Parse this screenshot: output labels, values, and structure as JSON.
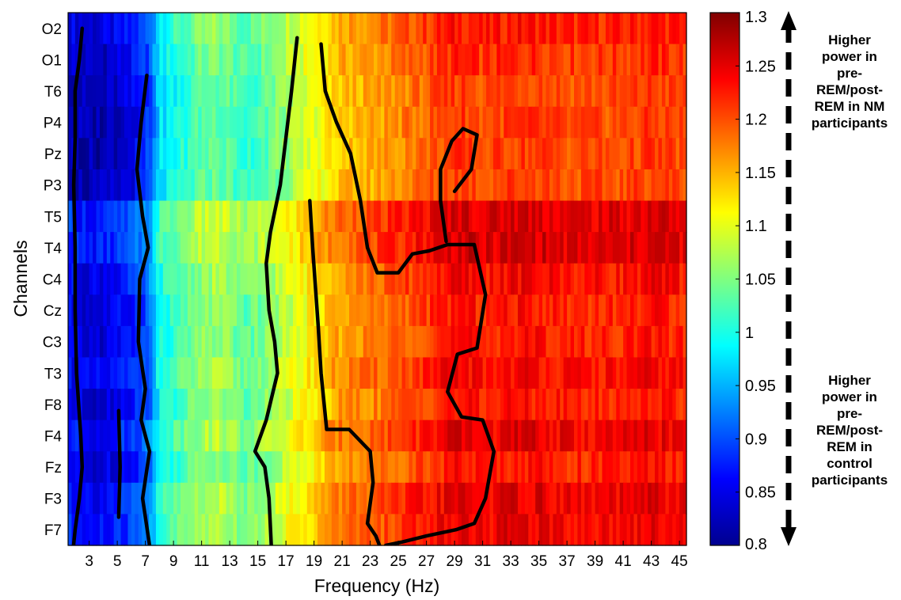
{
  "chart_data": {
    "type": "heatmap",
    "title": "",
    "xlabel": "Frequency (Hz)",
    "ylabel": "Channels",
    "channels": [
      "O2",
      "O1",
      "T6",
      "P4",
      "Pz",
      "P3",
      "T5",
      "T4",
      "C4",
      "Cz",
      "C3",
      "T3",
      "F8",
      "F4",
      "Fz",
      "F3",
      "F7"
    ],
    "x_range": [
      1.5,
      45.5
    ],
    "x_ticks": [
      "3",
      "5",
      "7",
      "9",
      "11",
      "13",
      "15",
      "17",
      "19",
      "21",
      "23",
      "25",
      "27",
      "29",
      "31",
      "33",
      "35",
      "37",
      "39",
      "41",
      "43",
      "45"
    ],
    "x_tick_values": [
      3,
      5,
      7,
      9,
      11,
      13,
      15,
      17,
      19,
      21,
      23,
      25,
      27,
      29,
      31,
      33,
      35,
      37,
      39,
      41,
      43,
      45
    ],
    "colorbar": {
      "range": [
        0.8,
        1.3
      ],
      "ticks": [
        "1.3",
        "1.25",
        "1.2",
        "1.15",
        "1.1",
        "1.05",
        "1",
        "0.95",
        "0.9",
        "0.85",
        "0.8"
      ],
      "tick_values": [
        1.3,
        1.25,
        1.2,
        1.15,
        1.1,
        1.05,
        1.0,
        0.95,
        0.9,
        0.85,
        0.8
      ],
      "colormap": "jet"
    },
    "freq_profile": {
      "hz": [
        1.5,
        2,
        3,
        4,
        5,
        6,
        7,
        7.5,
        8,
        9,
        10,
        11,
        12,
        13,
        14,
        15,
        16,
        17,
        18,
        19,
        20,
        21,
        22,
        23,
        24,
        25,
        26,
        27,
        28,
        29,
        30,
        31,
        33,
        35,
        37,
        39,
        41,
        43,
        45.5
      ],
      "ratio": [
        0.86,
        0.85,
        0.84,
        0.845,
        0.855,
        0.87,
        0.9,
        0.93,
        0.99,
        1.01,
        1.03,
        1.05,
        1.06,
        1.05,
        1.03,
        1.04,
        1.06,
        1.08,
        1.1,
        1.12,
        1.14,
        1.16,
        1.17,
        1.17,
        1.18,
        1.19,
        1.2,
        1.21,
        1.22,
        1.23,
        1.23,
        1.22,
        1.23,
        1.23,
        1.22,
        1.22,
        1.22,
        1.23,
        1.22
      ]
    },
    "channel_offsets": [
      0.0,
      -0.01,
      -0.02,
      -0.02,
      -0.02,
      -0.02,
      0.03,
      0.03,
      0.01,
      0.0,
      0.0,
      0.01,
      0.0,
      0.02,
      0.0,
      0.02,
      0.02
    ],
    "significance_contours": [
      {
        "region": "low",
        "points": [
          [
            2.5,
            0
          ],
          [
            2.3,
            1
          ],
          [
            2.0,
            2
          ],
          [
            2.0,
            3.5
          ],
          [
            1.9,
            5
          ],
          [
            2.0,
            7
          ],
          [
            2.0,
            9
          ],
          [
            2.1,
            11
          ],
          [
            2.4,
            13
          ],
          [
            2.5,
            14
          ],
          [
            2.3,
            15
          ],
          [
            2.0,
            16
          ],
          [
            1.8,
            16.9
          ]
        ]
      },
      {
        "region": "low",
        "points": [
          [
            7.1,
            1.5
          ],
          [
            6.7,
            3
          ],
          [
            6.4,
            4.5
          ],
          [
            6.8,
            6
          ],
          [
            7.2,
            7
          ],
          [
            6.6,
            8
          ],
          [
            6.5,
            10
          ],
          [
            7.0,
            11.5
          ],
          [
            6.7,
            12.5
          ],
          [
            7.3,
            13.5
          ],
          [
            6.8,
            15
          ],
          [
            7.3,
            16.5
          ]
        ]
      },
      {
        "region": "low",
        "points": [
          [
            5.1,
            12.2
          ],
          [
            5.2,
            14
          ],
          [
            5.1,
            15.6
          ]
        ]
      },
      {
        "region": "mid",
        "points": [
          [
            16.0,
            16.9
          ],
          [
            15.8,
            15
          ],
          [
            15.5,
            14
          ],
          [
            14.8,
            13.5
          ],
          [
            15.6,
            12.5
          ],
          [
            16.4,
            11
          ],
          [
            16.2,
            10
          ],
          [
            15.8,
            9
          ],
          [
            15.6,
            7.5
          ],
          [
            15.9,
            6.5
          ],
          [
            16.6,
            5
          ],
          [
            17.0,
            3.5
          ],
          [
            17.4,
            2
          ],
          [
            17.8,
            0.3
          ]
        ]
      },
      {
        "region": "mid",
        "points": [
          [
            18.7,
            5.5
          ],
          [
            18.9,
            7
          ],
          [
            19.3,
            9.5
          ],
          [
            19.5,
            11
          ],
          [
            19.9,
            12.8
          ],
          [
            21.5,
            12.8
          ],
          [
            23.0,
            13.5
          ],
          [
            23.2,
            14.5
          ],
          [
            22.8,
            15.8
          ],
          [
            23.4,
            16.2
          ],
          [
            24.0,
            16.9
          ]
        ]
      },
      {
        "region": "mid",
        "points": [
          [
            19.5,
            0.5
          ],
          [
            19.8,
            2
          ],
          [
            20.6,
            3
          ],
          [
            21.6,
            4
          ],
          [
            22.3,
            5.5
          ],
          [
            22.8,
            7
          ],
          [
            23.5,
            7.8
          ],
          [
            25.0,
            7.8
          ],
          [
            26.0,
            7.2
          ],
          [
            27.2,
            7.1
          ],
          [
            28.5,
            6.9
          ],
          [
            30.4,
            6.9
          ],
          [
            31.2,
            8.5
          ],
          [
            30.6,
            10.2
          ],
          [
            29.2,
            10.4
          ],
          [
            28.5,
            11.6
          ],
          [
            29.5,
            12.4
          ],
          [
            31.0,
            12.5
          ],
          [
            31.8,
            13.5
          ],
          [
            31.2,
            15
          ],
          [
            30.4,
            15.8
          ],
          [
            29.1,
            16.0
          ],
          [
            27.0,
            16.2
          ],
          [
            25.2,
            16.4
          ],
          [
            24.1,
            16.5
          ]
        ]
      },
      {
        "region": "mid",
        "points": [
          [
            28.4,
            6.8
          ],
          [
            28.0,
            5.5
          ],
          [
            28.0,
            4.5
          ],
          [
            28.8,
            3.6
          ],
          [
            29.6,
            3.2
          ],
          [
            30.6,
            3.4
          ],
          [
            30.2,
            4.5
          ],
          [
            29.0,
            5.2
          ]
        ]
      }
    ]
  },
  "annotations": {
    "top_note": [
      "Higher",
      "power in",
      "pre-",
      "REM/post-",
      "REM in NM",
      "participants"
    ],
    "bottom_note": [
      "Higher",
      "power in",
      "pre-",
      "REM/post-",
      "REM in",
      "control",
      "participants"
    ]
  }
}
